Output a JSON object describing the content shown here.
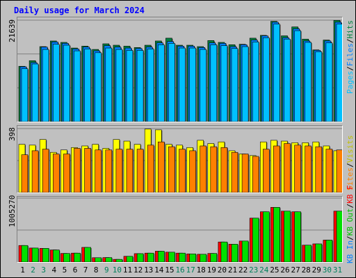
{
  "title": "Daily usage for March 2024",
  "colors": {
    "hits": "#008040",
    "files": "#0080ff",
    "pages": "#00c0ff",
    "visits": "#ffff00",
    "sites": "#ff8000",
    "kb_in": "#ff0000",
    "kb_out": "#00e000",
    "weekday": "#000000",
    "weekend": "#00805c"
  },
  "panels": {
    "top": {
      "max_label": "21639",
      "legend": [
        {
          "text": "Hits",
          "color": "#008040"
        },
        {
          "text": "/",
          "color": "#000000"
        },
        {
          "text": "Files",
          "color": "#0080ff"
        },
        {
          "text": "/",
          "color": "#000000"
        },
        {
          "text": "Pages",
          "color": "#00c0ff"
        }
      ]
    },
    "middle": {
      "max_label": "398",
      "legend": [
        {
          "text": "Visits",
          "color": "#c0c000"
        },
        {
          "text": "/",
          "color": "#000000"
        },
        {
          "text": "Sites",
          "color": "#ff8000"
        }
      ]
    },
    "bottom": {
      "max_label": "1005270",
      "legend": [
        {
          "text": "KB F",
          "color": "#ff0000"
        },
        {
          "text": "/",
          "color": "#000000"
        },
        {
          "text": "KB Out",
          "color": "#00c000"
        },
        {
          "text": "/",
          "color": "#000000"
        },
        {
          "text": "KB In",
          "color": "#0080ff"
        }
      ]
    }
  },
  "chart_data": [
    {
      "type": "bar",
      "panel": "top",
      "ylim": [
        0,
        21639
      ],
      "categories": [
        "1",
        "2",
        "3",
        "4",
        "5",
        "6",
        "7",
        "8",
        "9",
        "10",
        "11",
        "12",
        "13",
        "14",
        "15",
        "16",
        "17",
        "18",
        "19",
        "20",
        "21",
        "22",
        "23",
        "24",
        "25",
        "26",
        "27",
        "28",
        "29",
        "30",
        "31"
      ],
      "weekend_days": [
        "2",
        "3",
        "9",
        "10",
        "16",
        "17",
        "23",
        "24",
        "30",
        "31"
      ],
      "series": [
        {
          "name": "Hits",
          "values": [
            11800,
            13000,
            16000,
            17200,
            16900,
            15700,
            16100,
            15400,
            16600,
            16300,
            16100,
            15800,
            16300,
            17200,
            17800,
            16300,
            16300,
            16000,
            17300,
            16900,
            16400,
            16500,
            17800,
            18400,
            21400,
            18300,
            20200,
            17600,
            15300,
            17400,
            21600
          ]
        },
        {
          "name": "Files",
          "values": [
            11700,
            12600,
            15900,
            17000,
            16700,
            15500,
            15900,
            15100,
            16200,
            15900,
            15700,
            15600,
            15900,
            16800,
            17100,
            16100,
            16100,
            15800,
            16800,
            16700,
            16000,
            16400,
            17400,
            18300,
            21200,
            17900,
            19800,
            17200,
            15200,
            17200,
            21200
          ]
        },
        {
          "name": "Pages",
          "values": [
            11300,
            12300,
            15400,
            16500,
            16300,
            15100,
            15500,
            14700,
            15700,
            15400,
            15200,
            15200,
            15500,
            16400,
            16700,
            15700,
            15700,
            15400,
            16400,
            16200,
            15600,
            16000,
            17000,
            17900,
            20800,
            17600,
            19400,
            16900,
            14900,
            16800,
            20800
          ]
        }
      ]
    },
    {
      "type": "bar",
      "panel": "middle",
      "ylim": [
        0,
        398
      ],
      "categories": [
        "1",
        "2",
        "3",
        "4",
        "5",
        "6",
        "7",
        "8",
        "9",
        "10",
        "11",
        "12",
        "13",
        "14",
        "15",
        "16",
        "17",
        "18",
        "19",
        "20",
        "21",
        "22",
        "23",
        "24",
        "25",
        "26",
        "27",
        "28",
        "29",
        "30",
        "31"
      ],
      "series": [
        {
          "name": "Visits",
          "values": [
            300,
            295,
            330,
            250,
            265,
            280,
            290,
            300,
            275,
            330,
            320,
            300,
            395,
            390,
            300,
            295,
            280,
            325,
            305,
            315,
            260,
            240,
            230,
            315,
            325,
            320,
            310,
            310,
            315,
            290,
            260
          ]
        },
        {
          "name": "Sites",
          "values": [
            235,
            260,
            270,
            240,
            240,
            275,
            275,
            265,
            265,
            270,
            270,
            270,
            295,
            315,
            285,
            270,
            260,
            290,
            285,
            280,
            250,
            240,
            225,
            270,
            290,
            305,
            295,
            290,
            285,
            270,
            265
          ]
        }
      ]
    },
    {
      "type": "bar",
      "panel": "bottom",
      "ylim": [
        0,
        1005270
      ],
      "categories": [
        "1",
        "2",
        "3",
        "4",
        "5",
        "6",
        "7",
        "8",
        "9",
        "10",
        "11",
        "12",
        "13",
        "14",
        "15",
        "16",
        "17",
        "18",
        "19",
        "20",
        "21",
        "22",
        "23",
        "24",
        "25",
        "26",
        "27",
        "28",
        "29",
        "30",
        "31"
      ],
      "series": [
        {
          "name": "KB F",
          "values": [
            260000,
            220000,
            215000,
            190000,
            135000,
            140000,
            230000,
            68000,
            70000,
            42000,
            90000,
            132000,
            140000,
            170000,
            155000,
            140000,
            128000,
            122000,
            135000,
            315000,
            280000,
            330000,
            690000,
            790000,
            860000,
            800000,
            790000,
            265000,
            285000,
            345000,
            800000
          ]
        },
        {
          "name": "KB Out",
          "values": [
            260000,
            220000,
            215000,
            190000,
            135000,
            140000,
            230000,
            68000,
            70000,
            42000,
            90000,
            132000,
            140000,
            170000,
            155000,
            140000,
            128000,
            122000,
            135000,
            315000,
            280000,
            330000,
            690000,
            790000,
            860000,
            800000,
            790000,
            265000,
            285000,
            345000,
            800000
          ]
        }
      ]
    }
  ]
}
